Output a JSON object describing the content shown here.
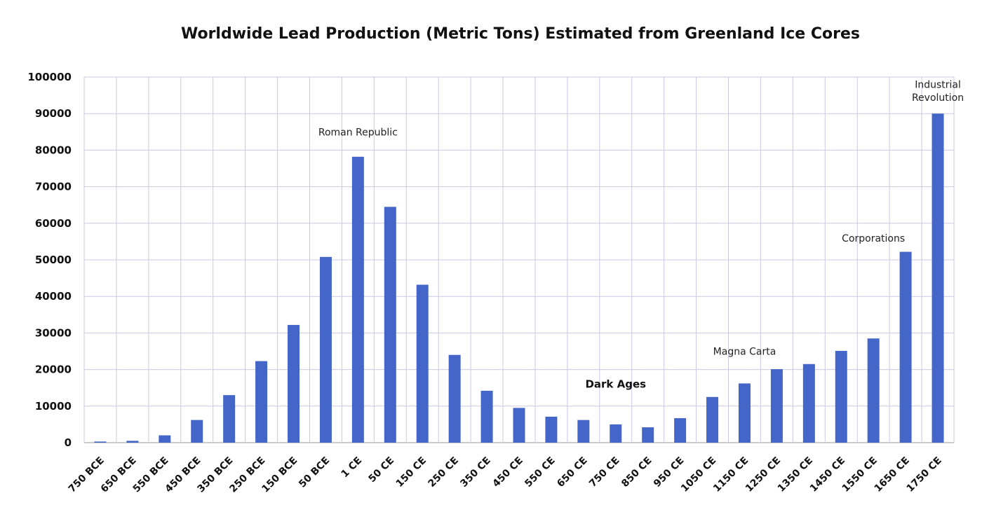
{
  "chart_data": {
    "type": "bar",
    "title": "Worldwide Lead Production (Metric Tons) Estimated from Greenland Ice Cores",
    "xlabel": "",
    "ylabel": "",
    "categories": [
      "750 BCE",
      "650 BCE",
      "550 BCE",
      "450 BCE",
      "350 BCE",
      "250 BCE",
      "150 BCE",
      "50 BCE",
      "1 CE",
      "50 CE",
      "150 CE",
      "250 CE",
      "350 CE",
      "450 CE",
      "550 CE",
      "650 CE",
      "750 CE",
      "850 CE",
      "950 CE",
      "1050 CE",
      "1150 CE",
      "1250 CE",
      "1350 CE",
      "1450 CE",
      "1550 CE",
      "1650 CE",
      "1750 CE"
    ],
    "values": [
      300,
      500,
      2000,
      6200,
      13000,
      22300,
      32200,
      50800,
      78200,
      64500,
      43200,
      24000,
      14200,
      9500,
      7100,
      6200,
      5000,
      4200,
      6700,
      12500,
      16200,
      20100,
      21500,
      25100,
      28500,
      52200,
      90000
    ],
    "ylim": [
      0,
      100000
    ],
    "yticks": [
      "0",
      "10000",
      "20000",
      "30000",
      "40000",
      "50000",
      "60000",
      "70000",
      "80000",
      "90000",
      "100000"
    ],
    "grid": true,
    "legend": "none",
    "bar_color": "#4566c9",
    "annotations": [
      {
        "text": "Roman Republic",
        "category": "1 CE",
        "y": 84000,
        "bold": false
      },
      {
        "text": "Dark Ages",
        "category": "750 CE",
        "y": 15000,
        "bold": true
      },
      {
        "text": "Magna Carta",
        "category": "1150 CE",
        "y": 24000,
        "bold": false
      },
      {
        "text": "Corporations",
        "category": "1550 CE",
        "y": 55000,
        "bold": false
      },
      {
        "text": "Industrial",
        "category": "1750 CE",
        "y": 97000,
        "bold": false
      },
      {
        "text": "Revolution",
        "category": "1750 CE",
        "y": 93500,
        "bold": false
      }
    ]
  }
}
